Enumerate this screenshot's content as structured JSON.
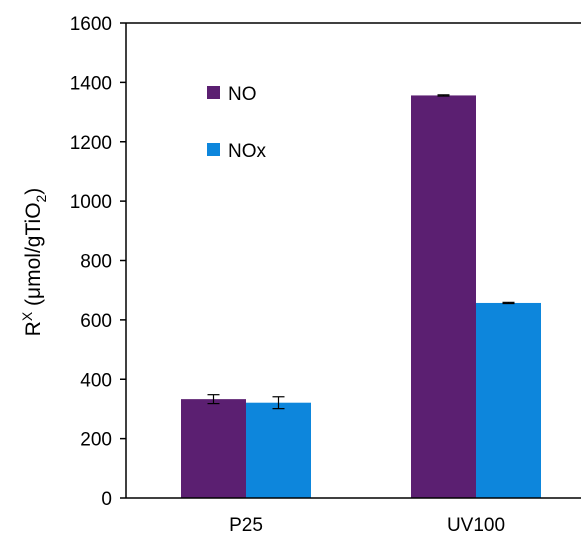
{
  "chart_data": {
    "type": "bar",
    "categories": [
      "P25",
      "UV100"
    ],
    "series": [
      {
        "name": "NO",
        "color": "#5b1f71",
        "values": [
          333,
          1356
        ],
        "errors": [
          15,
          2
        ]
      },
      {
        "name": "NOx",
        "color": "#0d86dc",
        "values": [
          321,
          657
        ],
        "errors": [
          20,
          2
        ]
      }
    ],
    "ylabel": {
      "prefix": "R",
      "superscript": "X",
      "unit_main": " (μmol/gTiO",
      "unit_sub": "2",
      "unit_close": ")"
    },
    "ylim": [
      0,
      1600
    ],
    "yticks": [
      0,
      200,
      400,
      600,
      800,
      1000,
      1200,
      1400,
      1600
    ],
    "grid": false,
    "legend_position": "top-left"
  }
}
